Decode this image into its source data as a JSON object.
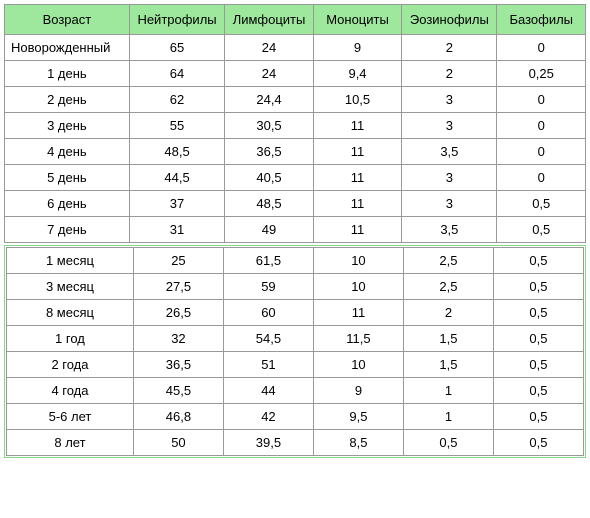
{
  "headers": [
    "Возраст",
    "Нейтрофилы",
    "Лимфоциты",
    "Моноциты",
    "Эозинофилы",
    "Базофилы"
  ],
  "section1": [
    {
      "age": "Новорожденный",
      "vals": [
        "65",
        "24",
        "9",
        "2",
        "0"
      ],
      "alignLeft": true
    },
    {
      "age": "1 день",
      "vals": [
        "64",
        "24",
        "9,4",
        "2",
        "0,25"
      ]
    },
    {
      "age": "2 день",
      "vals": [
        "62",
        "24,4",
        "10,5",
        "3",
        "0"
      ]
    },
    {
      "age": "3 день",
      "vals": [
        "55",
        "30,5",
        "11",
        "3",
        "0"
      ]
    },
    {
      "age": "4 день",
      "vals": [
        "48,5",
        "36,5",
        "11",
        "3,5",
        "0"
      ]
    },
    {
      "age": "5 день",
      "vals": [
        "44,5",
        "40,5",
        "11",
        "3",
        "0"
      ]
    },
    {
      "age": "6 день",
      "vals": [
        "37",
        "48,5",
        "11",
        "3",
        "0,5"
      ]
    },
    {
      "age": "7 день",
      "vals": [
        "31",
        "49",
        "11",
        "3,5",
        "0,5"
      ]
    }
  ],
  "section2": [
    {
      "age": "1 месяц",
      "vals": [
        "25",
        "61,5",
        "10",
        "2,5",
        "0,5"
      ]
    },
    {
      "age": "3 месяц",
      "vals": [
        "27,5",
        "59",
        "10",
        "2,5",
        "0,5"
      ]
    },
    {
      "age": "8 месяц",
      "vals": [
        "26,5",
        "60",
        "11",
        "2",
        "0,5"
      ]
    },
    {
      "age": "1 год",
      "vals": [
        "32",
        "54,5",
        "11,5",
        "1,5",
        "0,5"
      ]
    },
    {
      "age": "2 года",
      "vals": [
        "36,5",
        "51",
        "10",
        "1,5",
        "0,5"
      ]
    },
    {
      "age": "4 года",
      "vals": [
        "45,5",
        "44",
        "9",
        "1",
        "0,5"
      ]
    },
    {
      "age": "5-6 лет",
      "vals": [
        "46,8",
        "42",
        "9,5",
        "1",
        "0,5"
      ]
    },
    {
      "age": "8 лет",
      "vals": [
        "50",
        "39,5",
        "8,5",
        "0,5",
        "0,5"
      ]
    }
  ],
  "colors": {
    "header_bg": "#9ee89e",
    "border": "#999999",
    "group_border": "#86d986",
    "bg": "#ffffff",
    "text": "#000000"
  },
  "column_widths": {
    "age": 110,
    "data": 78
  },
  "font_size": 13,
  "structure_type": "table"
}
